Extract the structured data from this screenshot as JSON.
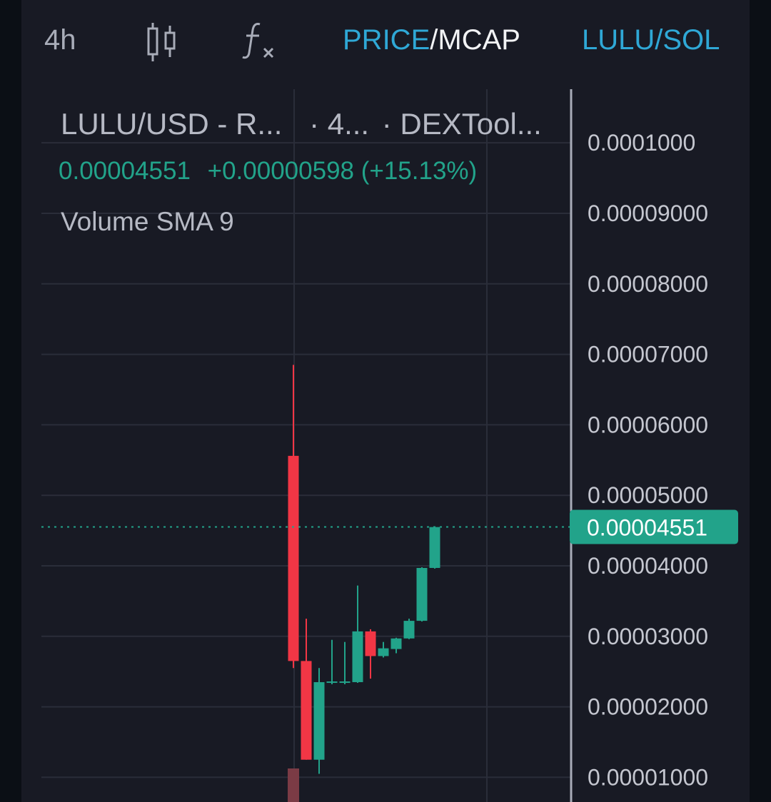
{
  "toolbar": {
    "interval": "4h",
    "candle_icon": "candlestick-icon",
    "indicator_icon": "function-fx-icon",
    "price_label": "PRICE",
    "separator": "/",
    "mcap_label": "MCAP",
    "pair_label": "LULU/SOL"
  },
  "legend": {
    "title_symbol": "LULU/USD - R...",
    "title_interval": "· 4...",
    "title_source": "· DEXTool...",
    "last_price": "0.00004551",
    "change": "+0.00000598 (+15.13%)",
    "volume_indicator": "Volume SMA 9"
  },
  "colors": {
    "up": "#22a38a",
    "down": "#f23645",
    "accent_blue": "#2fa8d6",
    "background": "#181a24"
  },
  "chart_data": {
    "type": "candlestick",
    "y_ticks": [
      "0.0001000",
      "0.00009000",
      "0.00008000",
      "0.00007000",
      "0.00006000",
      "0.00005000",
      "0.00004000",
      "0.00003000",
      "0.00002000",
      "0.00001000"
    ],
    "ylim": [
      6.5e-06,
      0.00010862
    ],
    "current_price": 4.551e-05,
    "current_price_label": "0.00004551",
    "candles": [
      {
        "open": 5.56e-05,
        "high": 6.85e-05,
        "low": 2.55e-05,
        "close": 2.65e-05
      },
      {
        "open": 2.65e-05,
        "high": 3.25e-05,
        "low": 1.25e-05,
        "close": 1.25e-05
      },
      {
        "open": 1.25e-05,
        "high": 2.55e-05,
        "low": 1.05e-05,
        "close": 2.35e-05
      },
      {
        "open": 2.35e-05,
        "high": 2.95e-05,
        "low": 2.32e-05,
        "close": 2.36e-05
      },
      {
        "open": 2.34e-05,
        "high": 2.92e-05,
        "low": 2.32e-05,
        "close": 2.36e-05
      },
      {
        "open": 2.35e-05,
        "high": 3.72e-05,
        "low": 2.34e-05,
        "close": 3.07e-05
      },
      {
        "open": 3.07e-05,
        "high": 3.1e-05,
        "low": 2.4e-05,
        "close": 2.72e-05
      },
      {
        "open": 2.72e-05,
        "high": 2.92e-05,
        "low": 2.7e-05,
        "close": 2.83e-05
      },
      {
        "open": 2.82e-05,
        "high": 2.98e-05,
        "low": 2.76e-05,
        "close": 2.97e-05
      },
      {
        "open": 2.97e-05,
        "high": 3.25e-05,
        "low": 2.96e-05,
        "close": 3.22e-05
      },
      {
        "open": 3.22e-05,
        "high": 3.98e-05,
        "low": 3.21e-05,
        "close": 3.97e-05
      },
      {
        "open": 3.97e-05,
        "high": 4.55e-05,
        "low": 3.96e-05,
        "close": 4.55e-05
      }
    ],
    "volume": [
      {
        "direction": "down"
      }
    ]
  }
}
